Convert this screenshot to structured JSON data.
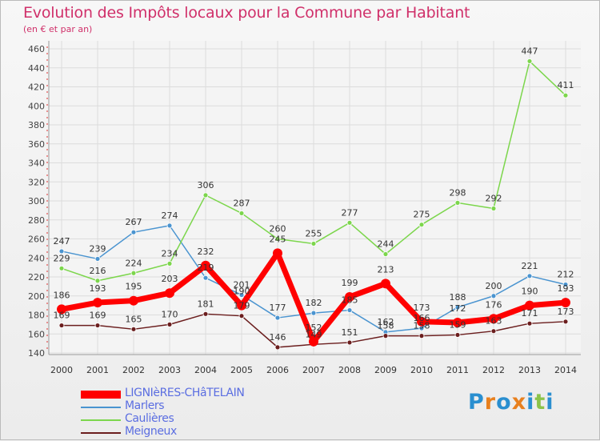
{
  "title": "Evolution des Impôts locaux pour la Commune par Habitant",
  "subtitle": "(en € et par an)",
  "brand": {
    "letters": [
      "P",
      "r",
      "o",
      "x",
      "i",
      "t",
      "i"
    ],
    "colors": [
      "#2a8fd0",
      "#e8801e",
      "#2a8fd0",
      "#e8801e",
      "#2a8fd0",
      "#8bc34a",
      "#2a8fd0"
    ]
  },
  "chart_data": {
    "type": "line",
    "title": "Evolution des Impôts locaux pour la Commune par Habitant",
    "subtitle": "(en € et par an)",
    "categories": [
      "2000",
      "2001",
      "2002",
      "2003",
      "2004",
      "2005",
      "2006",
      "2007",
      "2008",
      "2009",
      "2010",
      "2011",
      "2012",
      "2013",
      "2014"
    ],
    "ylim": [
      140,
      460
    ],
    "yticks": [
      140,
      160,
      180,
      200,
      220,
      240,
      260,
      280,
      300,
      320,
      340,
      360,
      380,
      400,
      420,
      440,
      460
    ],
    "grid": true,
    "legend_position": "bottom-left",
    "series": [
      {
        "name": "LIGNIèRES-CHâTELAIN",
        "color": "#ff0000",
        "values": [
          186,
          193,
          195,
          203,
          232,
          190,
          245,
          152,
          199,
          213,
          173,
          172,
          176,
          190,
          193
        ]
      },
      {
        "name": "Marlers",
        "color": "#4a94d0",
        "values": [
          247,
          239,
          267,
          274,
          219,
          201,
          177,
          182,
          185,
          162,
          166,
          188,
          200,
          221,
          212
        ]
      },
      {
        "name": "Caulières",
        "color": "#7cd64c",
        "values": [
          229,
          216,
          224,
          234,
          306,
          287,
          260,
          255,
          277,
          244,
          275,
          298,
          292,
          447,
          411
        ]
      },
      {
        "name": "Meigneux",
        "color": "#6b1e1e",
        "values": [
          169,
          169,
          165,
          170,
          181,
          179,
          146,
          149,
          151,
          158,
          158,
          159,
          163,
          171,
          173
        ]
      }
    ]
  }
}
